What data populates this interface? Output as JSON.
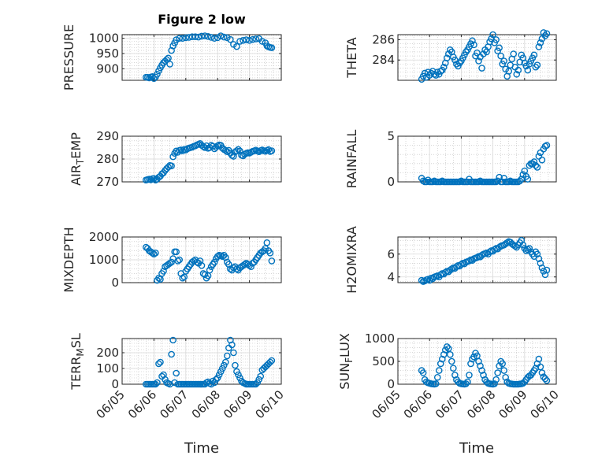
{
  "figure": {
    "title": "Figure 2 low",
    "xlabel": "Time",
    "marker_color": "#0072bd",
    "grid_color": "#bdbdbd",
    "axis_color": "#262626"
  },
  "chart_data": [
    {
      "type": "scatter",
      "ylabel": "PRESSURE",
      "title": "Figure 2 low",
      "ylim": [
        862,
        1012
      ],
      "yticks": [
        900,
        950,
        1000
      ],
      "grid": true,
      "x": [
        5.75,
        5.8,
        5.85,
        5.9,
        5.95,
        6.0,
        6.05,
        6.1,
        6.15,
        6.2,
        6.25,
        6.3,
        6.35,
        6.4,
        6.45,
        6.5,
        6.55,
        6.6,
        6.65,
        6.7,
        6.8,
        6.9,
        7.0,
        7.1,
        7.2,
        7.3,
        7.4,
        7.5,
        7.6,
        7.7,
        7.8,
        7.9,
        8.0,
        8.1,
        8.2,
        8.3,
        8.4,
        8.5,
        8.6,
        8.7,
        8.8,
        8.9,
        9.0,
        9.1,
        9.2,
        9.3,
        9.4,
        9.5,
        9.55,
        9.6,
        9.65,
        9.7
      ],
      "y": [
        872,
        872,
        870,
        873,
        874,
        868,
        873,
        882,
        893,
        903,
        912,
        920,
        925,
        930,
        935,
        915,
        960,
        975,
        985,
        995,
        1000,
        1000,
        1002,
        1003,
        1005,
        1005,
        1004,
        1007,
        1008,
        1006,
        1003,
        1000,
        1002,
        1008,
        1004,
        1002,
        996,
        980,
        973,
        990,
        993,
        995,
        993,
        996,
        998,
        999,
        990,
        985,
        975,
        972,
        970,
        969
      ]
    },
    {
      "type": "scatter",
      "ylabel": "THETA",
      "ylim": [
        282,
        286.5
      ],
      "yticks": [
        284,
        286
      ],
      "grid": true,
      "x": [
        5.75,
        5.8,
        5.85,
        5.9,
        5.95,
        6.0,
        6.05,
        6.1,
        6.15,
        6.2,
        6.25,
        6.3,
        6.35,
        6.4,
        6.45,
        6.5,
        6.55,
        6.6,
        6.65,
        6.7,
        6.75,
        6.8,
        6.85,
        6.9,
        6.95,
        7.0,
        7.05,
        7.1,
        7.15,
        7.2,
        7.25,
        7.3,
        7.35,
        7.4,
        7.45,
        7.5,
        7.55,
        7.6,
        7.65,
        7.7,
        7.75,
        7.8,
        7.85,
        7.9,
        7.95,
        8.0,
        8.05,
        8.1,
        8.15,
        8.2,
        8.25,
        8.3,
        8.35,
        8.4,
        8.45,
        8.5,
        8.55,
        8.6,
        8.65,
        8.7,
        8.75,
        8.8,
        8.85,
        8.9,
        8.95,
        9.0,
        9.05,
        9.1,
        9.15,
        9.2,
        9.25,
        9.3,
        9.35,
        9.4,
        9.45,
        9.5,
        9.55,
        9.6,
        9.65,
        9.7
      ],
      "y": [
        282.1,
        282.4,
        282.7,
        282.3,
        282.8,
        282.5,
        282.7,
        282.9,
        282.6,
        282.5,
        282.8,
        282.6,
        282.9,
        283.0,
        283.3,
        283.7,
        284.2,
        284.6,
        285.0,
        284.8,
        284.3,
        284.0,
        283.6,
        283.4,
        283.7,
        283.9,
        284.2,
        284.5,
        284.8,
        285.0,
        285.3,
        285.6,
        285.9,
        285.5,
        284.4,
        284.7,
        283.9,
        284.3,
        283.2,
        284.6,
        285.0,
        284.8,
        285.3,
        285.8,
        286.1,
        286.5,
        285.7,
        286.0,
        284.9,
        285.2,
        284.4,
        283.6,
        283.9,
        283.1,
        282.4,
        282.9,
        283.5,
        284.1,
        284.6,
        283.3,
        282.6,
        283.0,
        283.8,
        284.5,
        284.2,
        283.7,
        283.4,
        283.0,
        283.6,
        283.9,
        284.2,
        284.5,
        283.3,
        283.5,
        285.3,
        285.7,
        286.1,
        286.7,
        286.4,
        286.6
      ]
    },
    {
      "type": "scatter",
      "ylabel": "AIR_TEMP",
      "ylim": [
        270,
        290
      ],
      "yticks": [
        270,
        280,
        290
      ],
      "grid": true,
      "x": [
        5.75,
        5.8,
        5.85,
        5.9,
        5.95,
        6.0,
        6.05,
        6.1,
        6.15,
        6.2,
        6.25,
        6.3,
        6.35,
        6.4,
        6.45,
        6.5,
        6.55,
        6.6,
        6.65,
        6.7,
        6.75,
        6.8,
        6.85,
        6.9,
        6.95,
        7.0,
        7.05,
        7.1,
        7.15,
        7.2,
        7.25,
        7.3,
        7.35,
        7.4,
        7.45,
        7.5,
        7.55,
        7.6,
        7.65,
        7.7,
        7.75,
        7.8,
        7.85,
        7.9,
        7.95,
        8.0,
        8.05,
        8.1,
        8.15,
        8.2,
        8.25,
        8.3,
        8.35,
        8.4,
        8.45,
        8.5,
        8.55,
        8.6,
        8.65,
        8.7,
        8.75,
        8.8,
        8.85,
        8.9,
        8.95,
        9.0,
        9.05,
        9.1,
        9.15,
        9.2,
        9.25,
        9.3,
        9.35,
        9.4,
        9.45,
        9.5,
        9.55,
        9.6,
        9.65,
        9.7
      ],
      "y": [
        270.8,
        271.0,
        271.2,
        270.9,
        271.4,
        271.5,
        270.8,
        271.2,
        272.0,
        272.5,
        273.5,
        274.0,
        275.0,
        275.8,
        276.5,
        277.2,
        277.0,
        281.0,
        282.5,
        283.5,
        283.0,
        283.8,
        284.0,
        283.6,
        284.2,
        284.0,
        284.5,
        284.8,
        285.0,
        285.2,
        285.6,
        285.8,
        286.2,
        286.5,
        286.8,
        286.0,
        285.5,
        285.0,
        285.8,
        284.7,
        285.0,
        286.0,
        285.6,
        284.5,
        285.2,
        285.8,
        286.2,
        286.0,
        284.8,
        284.2,
        283.8,
        283.2,
        283.8,
        282.6,
        281.6,
        281.2,
        283.1,
        283.6,
        284.2,
        283.5,
        281.7,
        281.4,
        282.1,
        282.5,
        282.8,
        282.6,
        283.0,
        283.4,
        283.6,
        283.9,
        283.5,
        283.2,
        283.7,
        284.0,
        283.6,
        283.4,
        283.8,
        284.1,
        283.3,
        283.6
      ]
    },
    {
      "type": "scatter",
      "ylabel": "RAINFALL",
      "ylim": [
        0,
        5
      ],
      "yticks": [
        0,
        5
      ],
      "grid": true,
      "x": [
        5.75,
        5.8,
        5.85,
        5.9,
        5.95,
        6.0,
        6.05,
        6.1,
        6.15,
        6.2,
        6.25,
        6.3,
        6.35,
        6.4,
        6.45,
        6.5,
        6.55,
        6.6,
        6.65,
        6.7,
        6.75,
        6.8,
        6.85,
        6.9,
        6.95,
        7.0,
        7.05,
        7.1,
        7.15,
        7.2,
        7.25,
        7.3,
        7.35,
        7.4,
        7.45,
        7.5,
        7.55,
        7.6,
        7.65,
        7.7,
        7.75,
        7.8,
        7.85,
        7.9,
        7.95,
        8.0,
        8.05,
        8.1,
        8.15,
        8.2,
        8.25,
        8.3,
        8.35,
        8.4,
        8.45,
        8.5,
        8.55,
        8.6,
        8.65,
        8.7,
        8.75,
        8.8,
        8.85,
        8.9,
        8.95,
        9.0,
        9.05,
        9.1,
        9.15,
        9.2,
        9.25,
        9.3,
        9.35,
        9.4,
        9.45,
        9.5,
        9.55,
        9.6,
        9.65,
        9.7
      ],
      "y": [
        0.4,
        0.1,
        0.0,
        0.0,
        0.2,
        0.0,
        0.0,
        0.0,
        0.1,
        0.0,
        0.0,
        0.0,
        0.0,
        0.1,
        0.0,
        0.0,
        0.0,
        0.0,
        0.0,
        0.0,
        0.0,
        0.0,
        0.0,
        0.0,
        0.0,
        0.1,
        0.0,
        0.0,
        0.0,
        0.0,
        0.3,
        0.0,
        0.0,
        0.0,
        0.0,
        0.0,
        0.0,
        0.1,
        0.0,
        0.0,
        0.0,
        0.0,
        0.0,
        0.0,
        0.0,
        0.0,
        0.0,
        0.0,
        0.1,
        0.5,
        0.0,
        0.0,
        0.4,
        0.0,
        0.0,
        0.0,
        0.1,
        0.0,
        0.0,
        0.0,
        0.0,
        0.0,
        0.1,
        0.3,
        0.8,
        1.2,
        0.6,
        0.3,
        1.8,
        2.0,
        2.0,
        2.2,
        1.8,
        1.6,
        2.8,
        3.2,
        2.4,
        3.6,
        3.9,
        4.0
      ]
    },
    {
      "type": "scatter",
      "ylabel": "MIXDEPTH",
      "ylim": [
        0,
        2000
      ],
      "yticks": [
        0,
        1000,
        2000
      ],
      "grid": true,
      "x": [
        5.75,
        5.8,
        5.85,
        5.9,
        5.95,
        6.0,
        6.05,
        6.1,
        6.15,
        6.2,
        6.25,
        6.3,
        6.35,
        6.4,
        6.45,
        6.5,
        6.55,
        6.6,
        6.65,
        6.7,
        6.75,
        6.8,
        6.85,
        6.9,
        6.95,
        7.0,
        7.05,
        7.1,
        7.15,
        7.2,
        7.25,
        7.3,
        7.35,
        7.4,
        7.45,
        7.5,
        7.55,
        7.6,
        7.65,
        7.7,
        7.75,
        7.8,
        7.85,
        7.9,
        7.95,
        8.0,
        8.05,
        8.1,
        8.15,
        8.2,
        8.25,
        8.3,
        8.35,
        8.4,
        8.45,
        8.5,
        8.55,
        8.6,
        8.65,
        8.7,
        8.75,
        8.8,
        8.85,
        8.9,
        8.95,
        9.0,
        9.05,
        9.1,
        9.15,
        9.2,
        9.25,
        9.3,
        9.35,
        9.4,
        9.45,
        9.5,
        9.55,
        9.6,
        9.65,
        9.7
      ],
      "y": [
        1550,
        1500,
        1400,
        1350,
        1300,
        1250,
        1300,
        100,
        200,
        150,
        400,
        500,
        700,
        750,
        800,
        850,
        900,
        1050,
        1350,
        1350,
        950,
        1000,
        400,
        200,
        250,
        500,
        600,
        700,
        800,
        900,
        950,
        1000,
        900,
        850,
        950,
        750,
        400,
        350,
        200,
        300,
        550,
        700,
        800,
        900,
        1050,
        1150,
        1200,
        1180,
        1150,
        1200,
        1100,
        900,
        800,
        600,
        550,
        650,
        700,
        600,
        550,
        650,
        700,
        750,
        800,
        850,
        800,
        750,
        700,
        850,
        900,
        1000,
        1100,
        1200,
        1300,
        1350,
        1400,
        1500,
        1750,
        1400,
        1300,
        950
      ]
    },
    {
      "type": "scatter",
      "ylabel": "H2OMIXRA",
      "ylim": [
        3.5,
        7.5
      ],
      "yticks": [
        4,
        6
      ],
      "grid": true,
      "x": [
        5.75,
        5.8,
        5.85,
        5.9,
        5.95,
        6.0,
        6.05,
        6.1,
        6.15,
        6.2,
        6.25,
        6.3,
        6.35,
        6.4,
        6.45,
        6.5,
        6.55,
        6.6,
        6.65,
        6.7,
        6.75,
        6.8,
        6.85,
        6.9,
        6.95,
        7.0,
        7.05,
        7.1,
        7.15,
        7.2,
        7.25,
        7.3,
        7.35,
        7.4,
        7.45,
        7.5,
        7.55,
        7.6,
        7.65,
        7.7,
        7.75,
        7.8,
        7.85,
        7.9,
        7.95,
        8.0,
        8.05,
        8.1,
        8.15,
        8.2,
        8.25,
        8.3,
        8.35,
        8.4,
        8.45,
        8.5,
        8.55,
        8.6,
        8.65,
        8.7,
        8.75,
        8.8,
        8.85,
        8.9,
        8.95,
        9.0,
        9.05,
        9.1,
        9.15,
        9.2,
        9.25,
        9.3,
        9.35,
        9.4,
        9.45,
        9.5,
        9.55,
        9.6,
        9.65,
        9.7
      ],
      "y": [
        3.7,
        3.6,
        3.65,
        3.75,
        3.8,
        3.7,
        3.9,
        3.85,
        4.0,
        4.05,
        4.1,
        4.0,
        4.2,
        4.3,
        4.25,
        4.4,
        4.5,
        4.45,
        4.6,
        4.7,
        4.8,
        4.75,
        4.9,
        5.0,
        4.95,
        5.1,
        5.2,
        5.15,
        5.3,
        5.35,
        5.4,
        5.5,
        5.45,
        5.6,
        5.65,
        5.7,
        5.8,
        5.75,
        5.9,
        6.0,
        6.05,
        6.1,
        6.0,
        6.2,
        6.3,
        6.25,
        6.4,
        6.5,
        6.45,
        6.6,
        6.7,
        6.75,
        6.8,
        6.9,
        7.0,
        7.1,
        7.05,
        6.9,
        6.8,
        6.7,
        6.6,
        6.8,
        7.0,
        7.2,
        6.8,
        6.5,
        6.3,
        6.4,
        6.5,
        6.2,
        6.0,
        5.8,
        6.2,
        6.0,
        5.6,
        5.2,
        4.8,
        4.5,
        4.2,
        4.6
      ]
    },
    {
      "type": "scatter",
      "ylabel": "TERR_MSL",
      "ylim": [
        0,
        290
      ],
      "yticks": [
        0,
        100,
        200
      ],
      "grid": true,
      "x": [
        5.75,
        5.8,
        5.85,
        5.9,
        5.95,
        6.0,
        6.05,
        6.1,
        6.15,
        6.2,
        6.25,
        6.3,
        6.35,
        6.4,
        6.45,
        6.5,
        6.55,
        6.6,
        6.65,
        6.7,
        6.75,
        6.8,
        6.85,
        6.9,
        6.95,
        7.0,
        7.05,
        7.1,
        7.15,
        7.2,
        7.25,
        7.3,
        7.35,
        7.4,
        7.45,
        7.5,
        7.55,
        7.6,
        7.65,
        7.7,
        7.75,
        7.8,
        7.85,
        7.9,
        7.95,
        8.0,
        8.05,
        8.1,
        8.15,
        8.2,
        8.25,
        8.3,
        8.35,
        8.4,
        8.45,
        8.5,
        8.55,
        8.6,
        8.65,
        8.7,
        8.75,
        8.8,
        8.85,
        8.9,
        8.95,
        9.0,
        9.05,
        9.1,
        9.15,
        9.2,
        9.25,
        9.3,
        9.35,
        9.4,
        9.45,
        9.5,
        9.55,
        9.6,
        9.65,
        9.7
      ],
      "y": [
        0,
        0,
        0,
        0,
        0,
        0,
        0,
        10,
        130,
        140,
        50,
        60,
        30,
        10,
        5,
        0,
        190,
        280,
        10,
        70,
        0,
        0,
        0,
        0,
        0,
        0,
        0,
        0,
        0,
        0,
        0,
        0,
        0,
        0,
        0,
        0,
        0,
        0,
        10,
        15,
        5,
        0,
        20,
        10,
        30,
        40,
        60,
        80,
        100,
        120,
        140,
        180,
        230,
        280,
        250,
        200,
        120,
        80,
        60,
        40,
        20,
        10,
        5,
        0,
        0,
        0,
        0,
        0,
        0,
        0,
        10,
        30,
        50,
        90,
        100,
        110,
        120,
        130,
        140,
        150
      ]
    },
    {
      "type": "scatter",
      "ylabel": "SUN_FLUX",
      "ylim": [
        0,
        1000
      ],
      "yticks": [
        0,
        500,
        1000
      ],
      "grid": true,
      "x": [
        5.75,
        5.8,
        5.85,
        5.9,
        5.95,
        6.0,
        6.05,
        6.1,
        6.15,
        6.2,
        6.25,
        6.3,
        6.35,
        6.4,
        6.45,
        6.5,
        6.55,
        6.6,
        6.65,
        6.7,
        6.75,
        6.8,
        6.85,
        6.9,
        6.95,
        7.0,
        7.05,
        7.1,
        7.15,
        7.2,
        7.25,
        7.3,
        7.35,
        7.4,
        7.45,
        7.5,
        7.55,
        7.6,
        7.65,
        7.7,
        7.75,
        7.8,
        7.85,
        7.9,
        7.95,
        8.0,
        8.05,
        8.1,
        8.15,
        8.2,
        8.25,
        8.3,
        8.35,
        8.4,
        8.45,
        8.5,
        8.55,
        8.6,
        8.65,
        8.7,
        8.75,
        8.8,
        8.85,
        8.9,
        8.95,
        9.0,
        9.05,
        9.1,
        9.15,
        9.2,
        9.25,
        9.3,
        9.35,
        9.4,
        9.45,
        9.5,
        9.55,
        9.6,
        9.65,
        9.7
      ],
      "y": [
        300,
        250,
        100,
        50,
        30,
        20,
        10,
        5,
        0,
        10,
        150,
        300,
        450,
        550,
        650,
        750,
        820,
        780,
        650,
        500,
        350,
        200,
        100,
        50,
        20,
        10,
        5,
        0,
        10,
        50,
        200,
        450,
        550,
        600,
        680,
        620,
        500,
        400,
        300,
        200,
        100,
        50,
        20,
        10,
        5,
        0,
        10,
        100,
        250,
        400,
        500,
        450,
        300,
        150,
        50,
        20,
        10,
        5,
        0,
        0,
        0,
        0,
        5,
        10,
        20,
        50,
        100,
        150,
        180,
        200,
        250,
        300,
        350,
        450,
        550,
        380,
        250,
        160,
        120,
        80
      ]
    }
  ]
}
